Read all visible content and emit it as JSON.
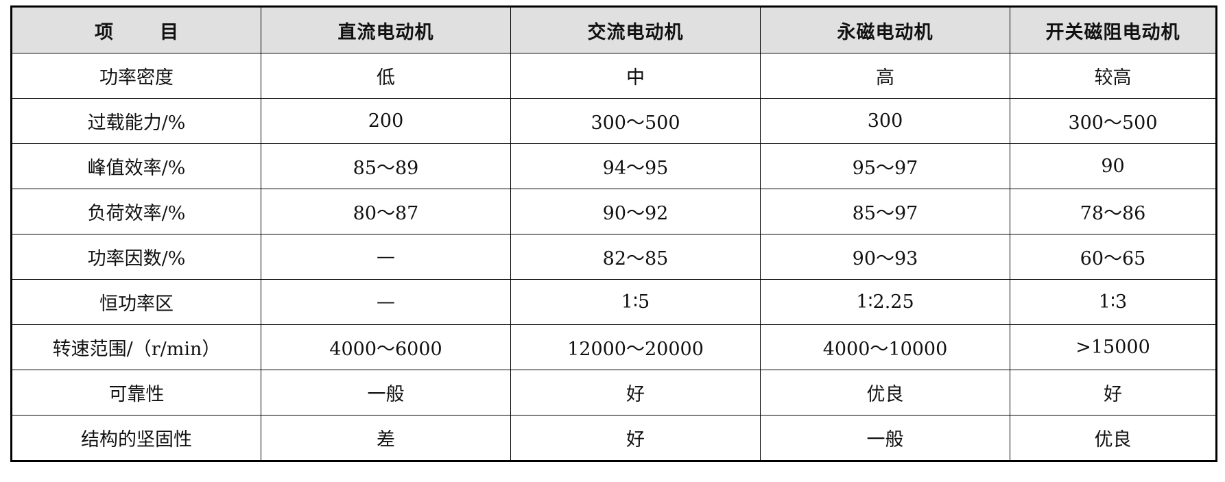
{
  "table": {
    "header": {
      "project_left": "项",
      "project_right": "目",
      "columns": [
        "直流电动机",
        "交流电动机",
        "永磁电动机",
        "开关磁阻电动机"
      ]
    },
    "rows": [
      {
        "label": "功率密度",
        "values": [
          "低",
          "中",
          "高",
          "较高"
        ]
      },
      {
        "label": "过载能力/%",
        "values": [
          "200",
          "300～500",
          "300",
          "300～500"
        ]
      },
      {
        "label": "峰值效率/%",
        "values": [
          "85～89",
          "94～95",
          "95～97",
          "90"
        ]
      },
      {
        "label": "负荷效率/%",
        "values": [
          "80～87",
          "90～92",
          "85～97",
          "78～86"
        ]
      },
      {
        "label": "功率因数/%",
        "values": [
          "—",
          "82～85",
          "90～93",
          "60～65"
        ]
      },
      {
        "label": "恒功率区",
        "values": [
          "—",
          "1∶5",
          "1∶2.25",
          "1∶3"
        ]
      },
      {
        "label": "转速范围/（r/min）",
        "values": [
          "4000～6000",
          "12000～20000",
          "4000～10000",
          ">15000"
        ]
      },
      {
        "label": "可靠性",
        "values": [
          "一般",
          "好",
          "优良",
          "好"
        ]
      },
      {
        "label": "结构的坚固性",
        "values": [
          "差",
          "好",
          "一般",
          "优良"
        ]
      }
    ]
  }
}
